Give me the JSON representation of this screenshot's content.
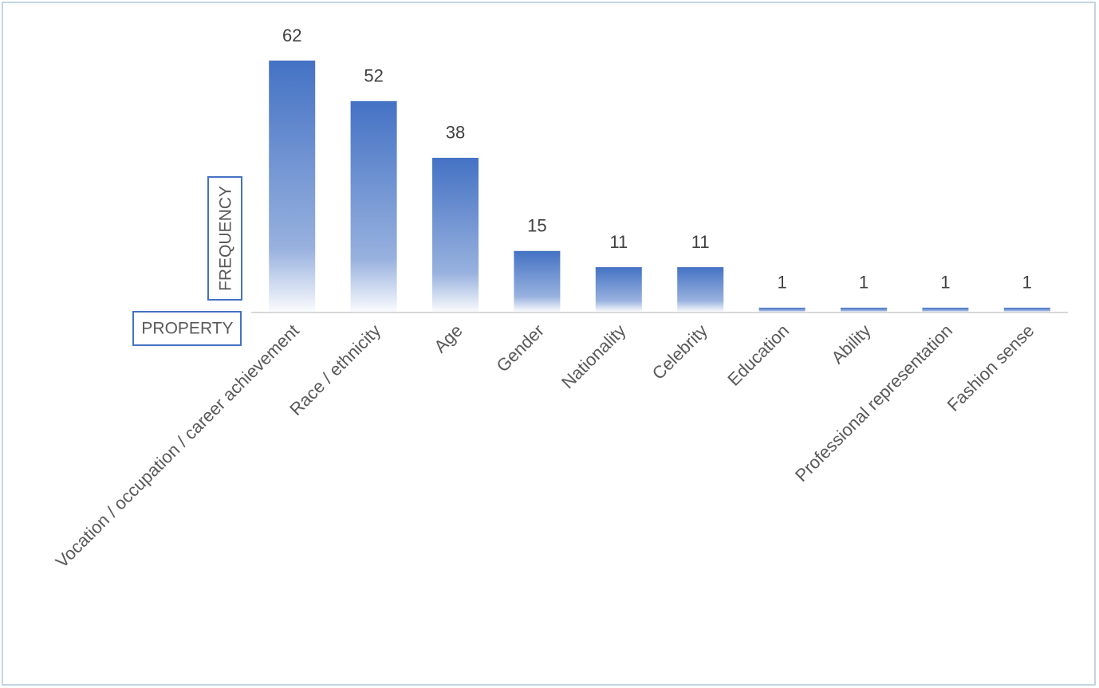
{
  "chart_data": {
    "type": "bar",
    "x_label": "PROPERTY",
    "y_label": "FREQUENCY",
    "categories": [
      "Vocation / occupation / career achievement",
      "Race / ethnicity",
      "Age",
      "Gender",
      "Nationality",
      "Celebrity",
      "Education",
      "Ability",
      "Professional representation",
      "Fashion sense"
    ],
    "values": [
      62,
      52,
      38,
      15,
      11,
      11,
      1,
      1,
      1,
      1
    ],
    "color": "#4472c4"
  }
}
